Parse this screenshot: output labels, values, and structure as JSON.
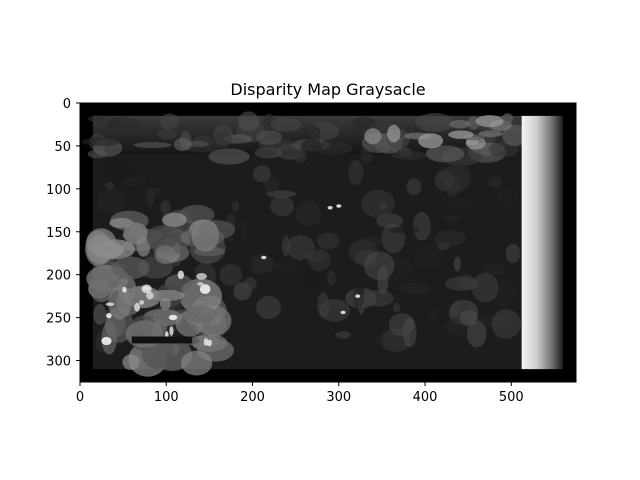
{
  "chart_data": {
    "type": "heatmap",
    "title": "Disparity Map Graysacle",
    "xlabel": "",
    "ylabel": "",
    "xlim": [
      0,
      575
    ],
    "ylim": [
      325,
      0
    ],
    "x_ticks": [
      0,
      100,
      200,
      300,
      400,
      500
    ],
    "y_ticks": [
      0,
      50,
      100,
      150,
      200,
      250,
      300
    ],
    "colormap": "gray",
    "grid": false,
    "legend": "none",
    "background_color": "#000000",
    "valid_region": {
      "x": [
        15,
        560
      ],
      "y": [
        15,
        310
      ]
    },
    "right_band": {
      "x": [
        512,
        560
      ],
      "value_left": 1.0,
      "value_right": 0.0
    }
  }
}
